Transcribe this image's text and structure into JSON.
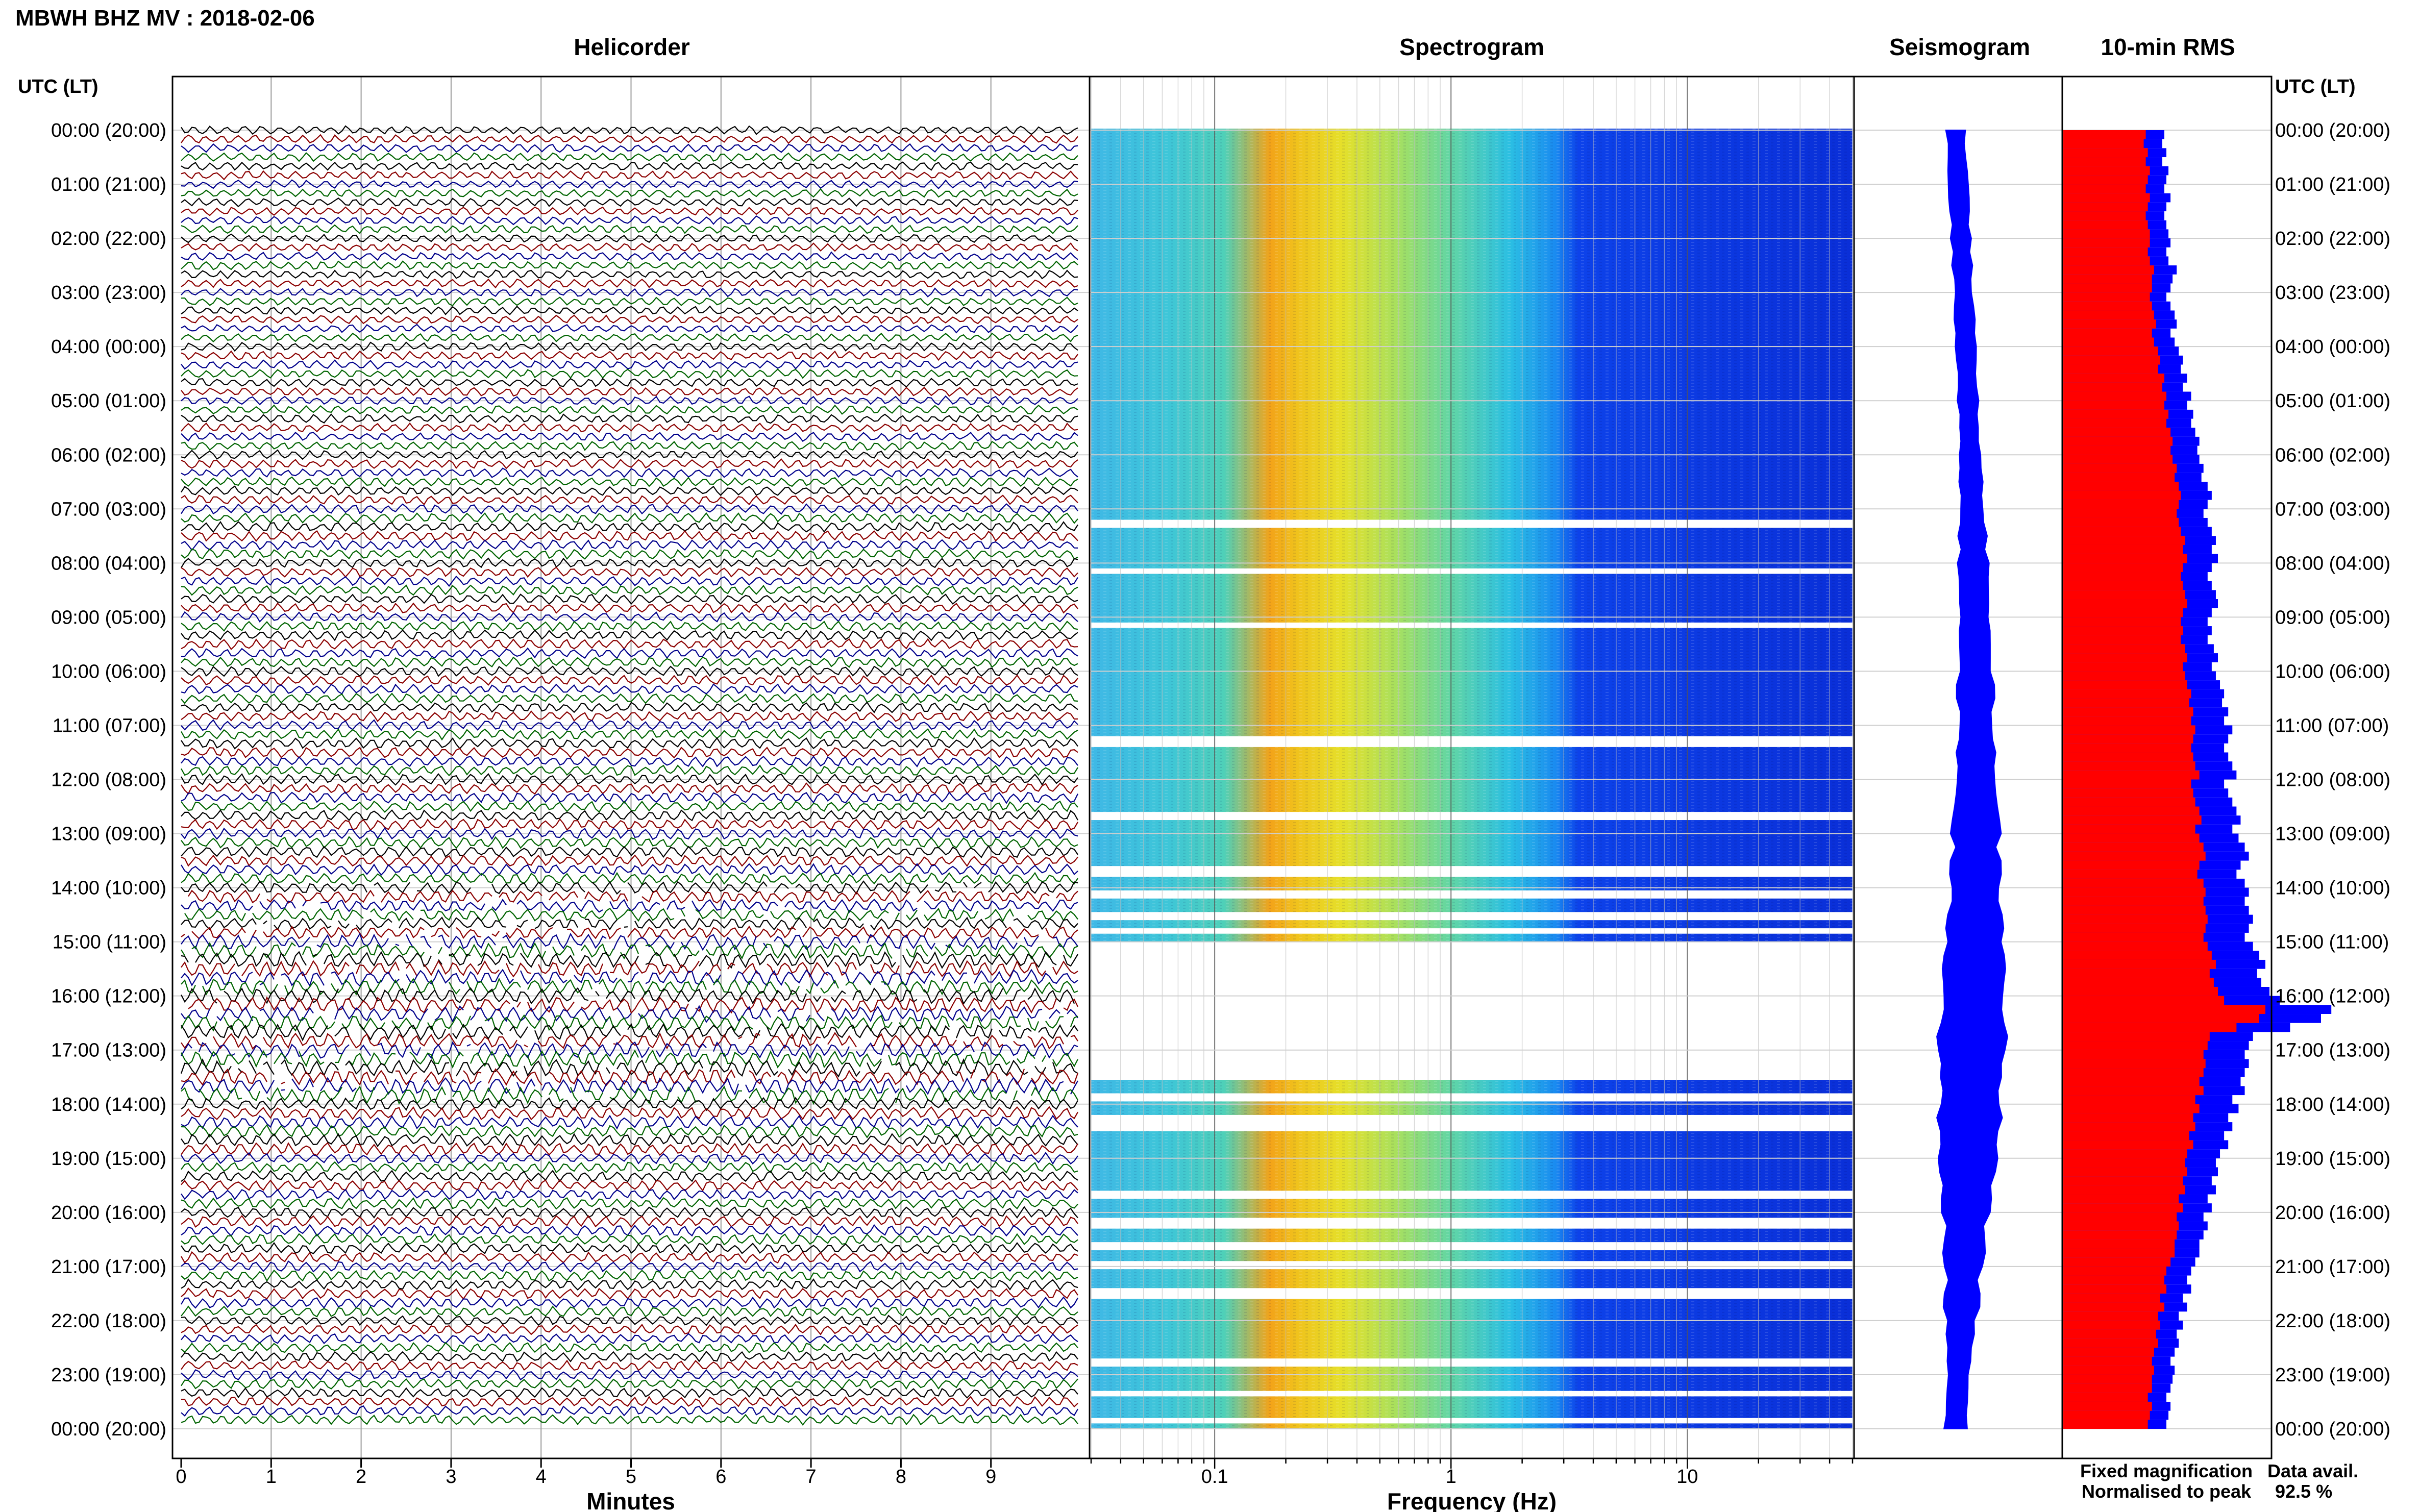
{
  "title": "MBWH BHZ MV : 2018-02-06",
  "panels": {
    "helicorder": "Helicorder",
    "spectrogram": "Spectrogram",
    "seismogram": "Seismogram",
    "rms": "10-min RMS"
  },
  "axis_headers": {
    "left": "UTC (LT)",
    "right": "UTC (LT)"
  },
  "xlabels": {
    "helicorder": "Minutes",
    "spectrogram": "Frequency (Hz)"
  },
  "legend": {
    "fixed": "Fixed magnification",
    "normalised": "Normalised to peak",
    "data_avail_label": "Data avail.",
    "data_avail_value": "92.5 %"
  },
  "colors": {
    "trace_cycle": [
      "#000000",
      "#8b0000",
      "#00008b",
      "#006400"
    ],
    "rms_fixed": "#0000ff",
    "rms_normalised": "#ff0000",
    "legend_fixed": "#0000ff",
    "legend_normalised": "#ff0000"
  },
  "chart_data": {
    "type": "heatmap",
    "time_labels": [
      "00:00 (20:00)",
      "01:00 (21:00)",
      "02:00 (22:00)",
      "03:00 (23:00)",
      "04:00 (00:00)",
      "05:00 (01:00)",
      "06:00 (02:00)",
      "07:00 (03:00)",
      "08:00 (04:00)",
      "09:00 (05:00)",
      "10:00 (06:00)",
      "11:00 (07:00)",
      "12:00 (08:00)",
      "13:00 (09:00)",
      "14:00 (10:00)",
      "15:00 (11:00)",
      "16:00 (12:00)",
      "17:00 (13:00)",
      "18:00 (14:00)",
      "19:00 (15:00)",
      "20:00 (16:00)",
      "21:00 (17:00)",
      "22:00 (18:00)",
      "23:00 (19:00)",
      "00:00 (20:00)"
    ],
    "helicorder": {
      "x_ticks": [
        "0",
        "1",
        "2",
        "3",
        "4",
        "5",
        "6",
        "7",
        "8",
        "9"
      ],
      "xlim": [
        0,
        10
      ],
      "lines_per_hour": 6,
      "hours": 24,
      "amplitude_by_hour": [
        1.0,
        1.0,
        1.0,
        1.0,
        1.05,
        1.05,
        1.1,
        1.2,
        1.15,
        1.2,
        1.2,
        1.25,
        1.3,
        1.35,
        1.5,
        1.9,
        1.9,
        2.0,
        1.5,
        1.3,
        1.3,
        1.25,
        1.2,
        1.2
      ]
    },
    "spectrogram": {
      "x_ticks": [
        "0.1",
        "1",
        "10"
      ],
      "xlim": [
        0.03,
        50
      ],
      "x_scale": "log",
      "data_gaps_hours": [
        [
          7.2,
          7.35
        ],
        [
          8.1,
          8.2
        ],
        [
          9.1,
          9.2
        ],
        [
          11.2,
          11.4
        ],
        [
          12.6,
          12.75
        ],
        [
          13.6,
          13.8
        ],
        [
          14.05,
          14.2
        ],
        [
          14.45,
          14.6
        ],
        [
          14.75,
          14.85
        ],
        [
          15.0,
          17.55
        ],
        [
          17.8,
          17.95
        ],
        [
          18.2,
          18.5
        ],
        [
          19.6,
          19.75
        ],
        [
          20.1,
          20.3
        ],
        [
          20.55,
          20.7
        ],
        [
          20.9,
          21.05
        ],
        [
          21.4,
          21.6
        ],
        [
          22.7,
          22.85
        ],
        [
          23.3,
          23.4
        ],
        [
          23.8,
          23.9
        ]
      ],
      "peak_band_hz": [
        0.18,
        0.3
      ]
    },
    "seismogram": {
      "envelope_by_hour": [
        0.3,
        0.3,
        0.3,
        0.3,
        0.3,
        0.32,
        0.35,
        0.42,
        0.45,
        0.5,
        0.55,
        0.6,
        0.68,
        0.75,
        0.85,
        0.95,
        1.05,
        1.0,
        0.95,
        0.85,
        0.7,
        0.55,
        0.45,
        0.35
      ]
    },
    "rms": {
      "fixed_magnification": [
        0.49,
        0.48,
        0.5,
        0.48,
        0.51,
        0.5,
        0.49,
        0.52,
        0.5,
        0.49,
        0.5,
        0.51,
        0.52,
        0.5,
        0.51,
        0.55,
        0.53,
        0.52,
        0.5,
        0.52,
        0.54,
        0.55,
        0.52,
        0.54,
        0.56,
        0.58,
        0.57,
        0.6,
        0.58,
        0.62,
        0.6,
        0.63,
        0.62,
        0.64,
        0.66,
        0.65,
        0.66,
        0.68,
        0.67,
        0.7,
        0.72,
        0.7,
        0.68,
        0.7,
        0.72,
        0.74,
        0.72,
        0.75,
        0.72,
        0.7,
        0.72,
        0.74,
        0.75,
        0.72,
        0.7,
        0.72,
        0.7,
        0.73,
        0.75,
        0.72,
        0.74,
        0.76,
        0.78,
        0.77,
        0.8,
        0.78,
        0.82,
        0.8,
        0.78,
        0.8,
        0.82,
        0.84,
        0.78,
        0.8,
        0.82,
        0.84,
        0.86,
        0.82,
        0.85,
        0.88,
        0.9,
        0.86,
        0.84,
        0.88,
        0.9,
        0.88,
        0.9,
        0.92,
        0.9,
        0.88,
        0.92,
        0.95,
        0.98,
        0.94,
        0.96,
        1.0,
        1.05,
        1.3,
        1.25,
        1.1,
        0.92,
        0.9,
        0.88,
        0.9,
        0.88,
        0.86,
        0.88,
        0.82,
        0.85,
        0.8,
        0.82,
        0.78,
        0.8,
        0.76,
        0.74,
        0.75,
        0.72,
        0.74,
        0.7,
        0.72,
        0.68,
        0.7,
        0.68,
        0.66,
        0.66,
        0.64,
        0.62,
        0.6,
        0.62,
        0.58,
        0.6,
        0.56,
        0.58,
        0.55,
        0.56,
        0.54,
        0.52,
        0.54,
        0.53,
        0.52,
        0.5,
        0.52,
        0.51,
        0.5
      ],
      "normalised_to_peak": [
        0.4,
        0.39,
        0.41,
        0.4,
        0.42,
        0.41,
        0.4,
        0.42,
        0.41,
        0.4,
        0.41,
        0.42,
        0.42,
        0.41,
        0.42,
        0.44,
        0.43,
        0.43,
        0.42,
        0.43,
        0.44,
        0.45,
        0.43,
        0.44,
        0.46,
        0.47,
        0.46,
        0.49,
        0.48,
        0.5,
        0.49,
        0.51,
        0.5,
        0.52,
        0.53,
        0.52,
        0.53,
        0.55,
        0.54,
        0.56,
        0.57,
        0.56,
        0.55,
        0.56,
        0.57,
        0.59,
        0.58,
        0.6,
        0.58,
        0.57,
        0.58,
        0.59,
        0.6,
        0.58,
        0.57,
        0.58,
        0.57,
        0.59,
        0.6,
        0.58,
        0.59,
        0.6,
        0.62,
        0.61,
        0.63,
        0.62,
        0.64,
        0.63,
        0.62,
        0.63,
        0.64,
        0.66,
        0.62,
        0.63,
        0.64,
        0.66,
        0.67,
        0.64,
        0.66,
        0.68,
        0.69,
        0.66,
        0.65,
        0.68,
        0.69,
        0.68,
        0.69,
        0.7,
        0.69,
        0.68,
        0.7,
        0.72,
        0.74,
        0.71,
        0.73,
        0.75,
        0.78,
        0.98,
        0.95,
        0.84,
        0.71,
        0.7,
        0.68,
        0.69,
        0.68,
        0.66,
        0.68,
        0.64,
        0.66,
        0.63,
        0.64,
        0.61,
        0.63,
        0.6,
        0.59,
        0.6,
        0.58,
        0.59,
        0.56,
        0.58,
        0.55,
        0.56,
        0.55,
        0.54,
        0.54,
        0.52,
        0.5,
        0.49,
        0.5,
        0.47,
        0.49,
        0.46,
        0.47,
        0.45,
        0.46,
        0.44,
        0.43,
        0.44,
        0.43,
        0.43,
        0.41,
        0.43,
        0.42,
        0.41
      ]
    }
  }
}
